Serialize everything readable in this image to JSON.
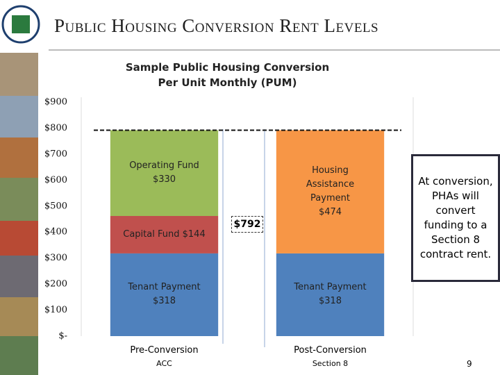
{
  "header": {
    "title": "Public Housing Conversion Rent Levels"
  },
  "chart_data": {
    "type": "stacked-bar",
    "title": "Sample Public Housing Conversion Per Unit Monthly (PUM)",
    "categories": [
      "Pre-Conversion",
      "Post-Conversion"
    ],
    "category_sublabels": [
      "ACC",
      "Section 8"
    ],
    "series": [
      {
        "name": "Tenant Payment",
        "color": "#4f81bd",
        "values": [
          318,
          318
        ],
        "value_labels": [
          "$318",
          "$318"
        ]
      },
      {
        "name": "Capital Fund",
        "color": "#c0504d",
        "values": [
          144,
          null
        ],
        "value_labels": [
          "$144",
          null
        ]
      },
      {
        "name": "Operating Fund",
        "color": "#9bbb59",
        "values": [
          330,
          null
        ],
        "value_labels": [
          "$330",
          null
        ]
      },
      {
        "name": "Housing Assistance Payment",
        "color": "#f79646",
        "values": [
          null,
          474
        ],
        "value_labels": [
          null,
          "$474"
        ]
      }
    ],
    "total_label": "$792",
    "ylim": [
      0,
      900
    ],
    "yticks": [
      {
        "value": 0,
        "label": "$-"
      },
      {
        "value": 100,
        "label": "$100"
      },
      {
        "value": 200,
        "label": "$200"
      },
      {
        "value": 300,
        "label": "$300"
      },
      {
        "value": 400,
        "label": "$400"
      },
      {
        "value": 500,
        "label": "$500"
      },
      {
        "value": 600,
        "label": "$600"
      },
      {
        "value": 700,
        "label": "$700"
      },
      {
        "value": 800,
        "label": "$800"
      },
      {
        "value": 900,
        "label": "$900"
      }
    ]
  },
  "callout": "At conversion, PHAs will convert funding to a Section 8 contract rent.",
  "page_number": "9"
}
